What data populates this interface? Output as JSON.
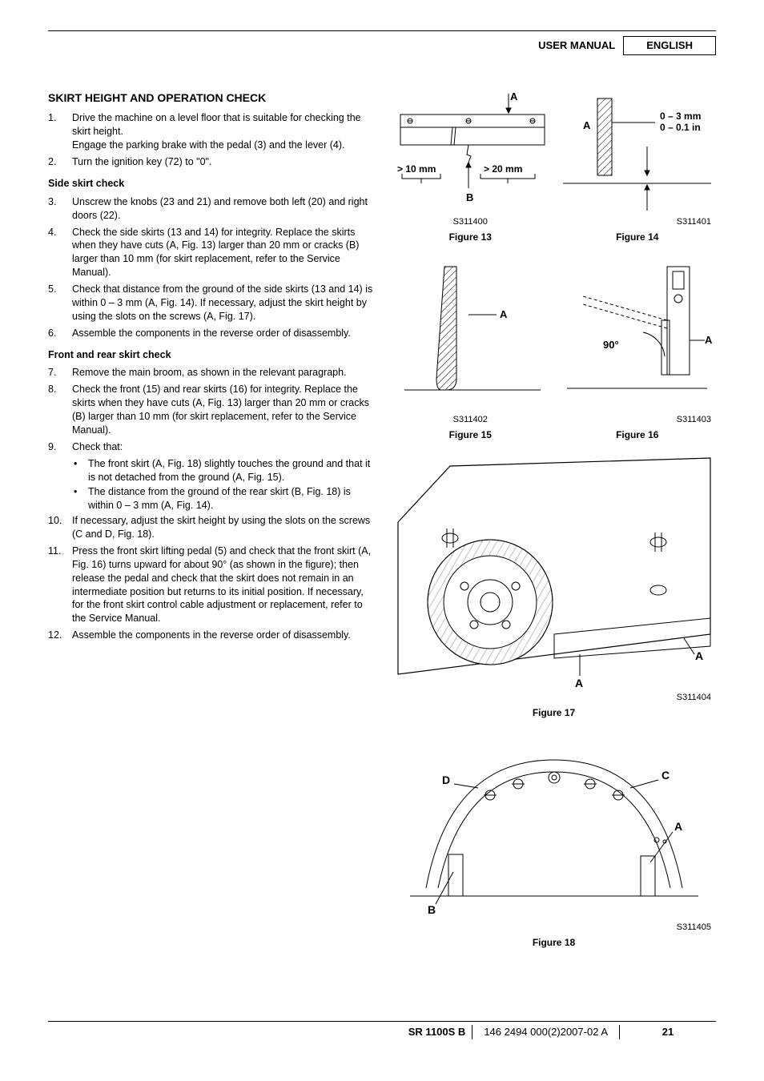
{
  "header": {
    "user_manual": "USER MANUAL",
    "language": "ENGLISH"
  },
  "section_title": "SKIRT HEIGHT AND OPERATION CHECK",
  "steps_a": [
    {
      "n": "1.",
      "t": "Drive the machine on a level floor that is suitable for checking the skirt height.\nEngage the parking brake with the pedal (3) and the lever (4)."
    },
    {
      "n": "2.",
      "t": "Turn the ignition key (72) to \"0\"."
    }
  ],
  "sub_a": "Side skirt check",
  "steps_b": [
    {
      "n": "3.",
      "t": "Unscrew the knobs (23 and 21) and remove both left (20) and right doors (22)."
    },
    {
      "n": "4.",
      "t": "Check the side skirts (13 and 14) for integrity. Replace the skirts when they have cuts (A, Fig. 13) larger than 20 mm or cracks (B) larger than 10 mm (for skirt replacement, refer to the Service Manual)."
    },
    {
      "n": "5.",
      "t": "Check that distance from the ground of the side skirts (13 and 14) is within 0 – 3 mm (A, Fig. 14). If necessary, adjust the skirt height by using the slots on the screws (A, Fig. 17)."
    },
    {
      "n": "6.",
      "t": "Assemble the components in the reverse order of disassembly."
    }
  ],
  "sub_b": "Front and rear skirt check",
  "steps_c": [
    {
      "n": "7.",
      "t": "Remove the main broom, as shown in the relevant paragraph."
    },
    {
      "n": "8.",
      "t": "Check the front (15) and rear skirts (16) for integrity. Replace the skirts when they have cuts (A, Fig. 13) larger than 20 mm or cracks (B) larger than 10 mm (for skirt replacement, refer to the Service Manual)."
    },
    {
      "n": "9.",
      "t": "Check that:"
    }
  ],
  "bullets_9": [
    "The front skirt (A, Fig. 18) slightly touches the ground and that it is not detached from the ground (A, Fig. 15).",
    "The distance from the ground of the rear skirt (B, Fig. 18) is within 0 – 3 mm (A, Fig. 14)."
  ],
  "steps_d": [
    {
      "n": "10.",
      "t": "If necessary, adjust the skirt height by using the slots on the screws (C and D, Fig. 18)."
    },
    {
      "n": "11.",
      "t": "Press the front skirt lifting pedal (5) and check that the front skirt (A, Fig. 16) turns upward for about 90° (as shown in the figure); then release the pedal and check that the skirt does not remain in an intermediate position but returns to its initial position. If necessary, for the front skirt control cable adjustment or replacement, refer to the Service Manual."
    },
    {
      "n": "12.",
      "t": "Assemble the components in the reverse order of disassembly."
    }
  ],
  "figures": {
    "f13": {
      "caption": "Figure 13",
      "id": "S311400",
      "labels": {
        "A": "A",
        "B": "B",
        "gt10": "> 10 mm",
        "gt20": "> 20 mm"
      }
    },
    "f14": {
      "caption": "Figure 14",
      "id": "S311401",
      "labels": {
        "A": "A",
        "range": "0 – 3 mm\n0 – 0.1 in"
      }
    },
    "f15": {
      "caption": "Figure 15",
      "id": "S311402",
      "labels": {
        "A": "A"
      }
    },
    "f16": {
      "caption": "Figure 16",
      "id": "S311403",
      "labels": {
        "A": "A",
        "deg": "90°"
      }
    },
    "f17": {
      "caption": "Figure 17",
      "id": "S311404",
      "labels": {
        "A": "A",
        "A2": "A"
      }
    },
    "f18": {
      "caption": "Figure 18",
      "id": "S311405",
      "labels": {
        "A": "A",
        "B": "B",
        "C": "C",
        "D": "D"
      }
    }
  },
  "footer": {
    "model": "SR 1100S B",
    "doc": "146 2494 000(2)2007-02 A",
    "page": "21"
  },
  "colors": {
    "text": "#000000",
    "line": "#000000",
    "bg": "#ffffff",
    "hatch": "#000000"
  }
}
